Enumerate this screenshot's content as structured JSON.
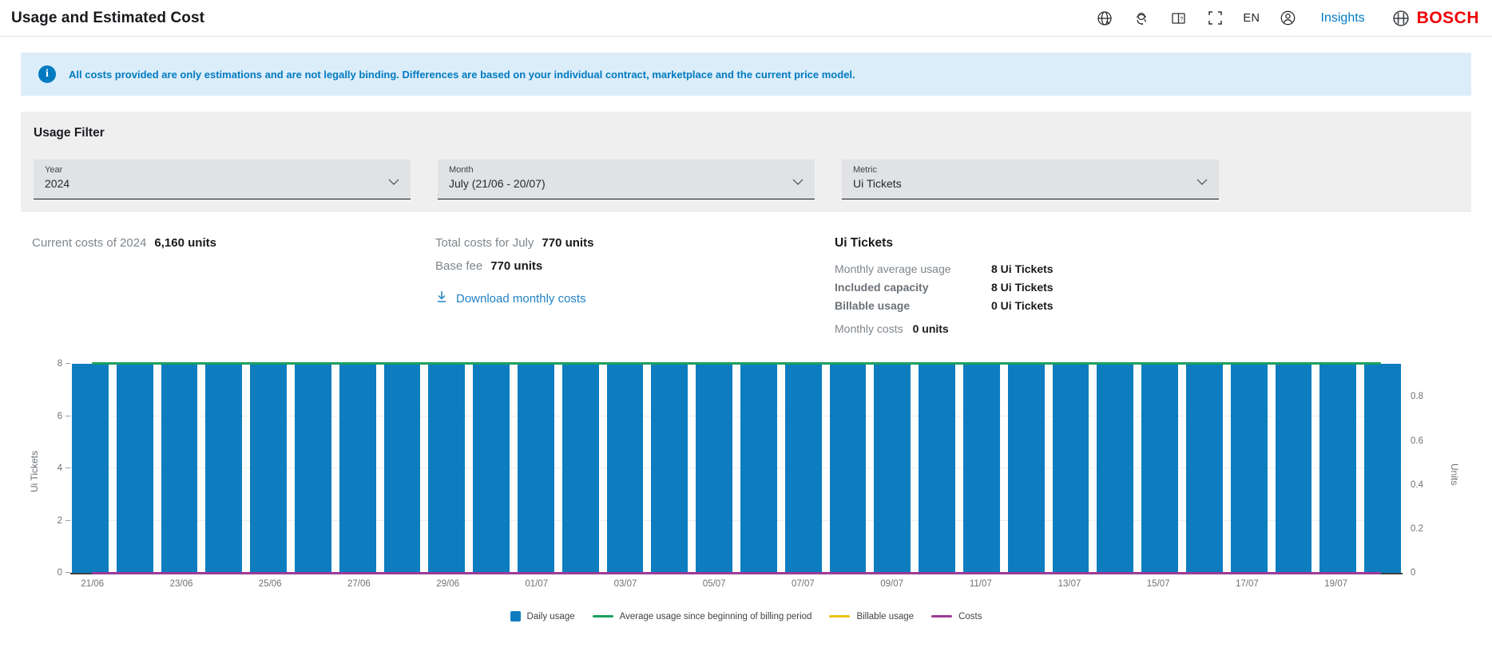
{
  "header": {
    "title": "Usage and Estimated Cost",
    "language": "EN",
    "insights_label": "Insights",
    "brand": "BOSCH"
  },
  "banner": {
    "text": "All costs provided are only estimations and are not legally binding. Differences are based on your individual contract, marketplace and the current price model."
  },
  "filter": {
    "title": "Usage Filter",
    "dropdowns": [
      {
        "label": "Year",
        "value": "2024"
      },
      {
        "label": "Month",
        "value": "July (21/06 - 20/07)"
      },
      {
        "label": "Metric",
        "value": "Ui Tickets"
      }
    ]
  },
  "summary": {
    "current_costs_label": "Current costs of 2024",
    "current_costs_value": "6,160 units",
    "total_costs_label": "Total costs for July",
    "total_costs_value": "770 units",
    "base_fee_label": "Base fee",
    "base_fee_value": "770 units",
    "download_label": "Download monthly costs"
  },
  "metric_details": {
    "title": "Ui Tickets",
    "rows": [
      {
        "label": "Monthly average usage",
        "value": "8 Ui Tickets",
        "bold_label": false
      },
      {
        "label": "Included capacity",
        "value": "8 Ui Tickets",
        "bold_label": true
      },
      {
        "label": "Billable usage",
        "value": "0 Ui Tickets",
        "bold_label": true
      }
    ],
    "monthly_costs_label": "Monthly costs",
    "monthly_costs_value": "0 units"
  },
  "colors": {
    "accent_blue": "#007bc0",
    "brand_red": "#ed0007"
  },
  "chart_data": {
    "type": "bar",
    "categories": [
      "21/06",
      "22/06",
      "23/06",
      "24/06",
      "25/06",
      "26/06",
      "27/06",
      "28/06",
      "29/06",
      "30/06",
      "01/07",
      "02/07",
      "03/07",
      "04/07",
      "05/07",
      "06/07",
      "07/07",
      "08/07",
      "09/07",
      "10/07",
      "11/07",
      "12/07",
      "13/07",
      "14/07",
      "15/07",
      "16/07",
      "17/07",
      "18/07",
      "19/07",
      "20/07"
    ],
    "series": [
      {
        "name": "Daily usage",
        "type": "bar",
        "color": "#0d7dbf",
        "axis": "left",
        "values": [
          8,
          8,
          8,
          8,
          8,
          8,
          8,
          8,
          8,
          8,
          8,
          8,
          8,
          8,
          8,
          8,
          8,
          8,
          8,
          8,
          8,
          8,
          8,
          8,
          8,
          8,
          8,
          8,
          8,
          8
        ]
      },
      {
        "name": "Average usage since beginning of billing period",
        "type": "line",
        "color": "#1ba05f",
        "axis": "left",
        "values": [
          8,
          8,
          8,
          8,
          8,
          8,
          8,
          8,
          8,
          8,
          8,
          8,
          8,
          8,
          8,
          8,
          8,
          8,
          8,
          8,
          8,
          8,
          8,
          8,
          8,
          8,
          8,
          8,
          8,
          8
        ]
      },
      {
        "name": "Billable usage",
        "type": "line",
        "color": "#e8c417",
        "axis": "right",
        "values": [
          0,
          0,
          0,
          0,
          0,
          0,
          0,
          0,
          0,
          0,
          0,
          0,
          0,
          0,
          0,
          0,
          0,
          0,
          0,
          0,
          0,
          0,
          0,
          0,
          0,
          0,
          0,
          0,
          0,
          0
        ]
      },
      {
        "name": "Costs",
        "type": "line",
        "color": "#9d3a96",
        "axis": "right",
        "values": [
          0,
          0,
          0,
          0,
          0,
          0,
          0,
          0,
          0,
          0,
          0,
          0,
          0,
          0,
          0,
          0,
          0,
          0,
          0,
          0,
          0,
          0,
          0,
          0,
          0,
          0,
          0,
          0,
          0,
          0
        ]
      }
    ],
    "ylabel_left": "Ui Tickets",
    "ylabel_right": "Units",
    "yticks_left": [
      0,
      2,
      4,
      6,
      8
    ],
    "yticks_right": [
      0,
      0.2,
      0.4,
      0.6,
      0.8
    ],
    "ylim_left": [
      0,
      8
    ],
    "ylim_right": [
      0,
      0.95
    ],
    "xtick_labels": [
      "21/06",
      "23/06",
      "25/06",
      "27/06",
      "29/06",
      "01/07",
      "03/07",
      "05/07",
      "07/07",
      "09/07",
      "11/07",
      "13/07",
      "15/07",
      "17/07",
      "19/07"
    ],
    "xtick_slots": [
      0,
      2,
      4,
      6,
      8,
      10,
      12,
      14,
      16,
      18,
      20,
      22,
      24,
      26,
      28
    ],
    "grid": false,
    "legend_position": "bottom"
  }
}
